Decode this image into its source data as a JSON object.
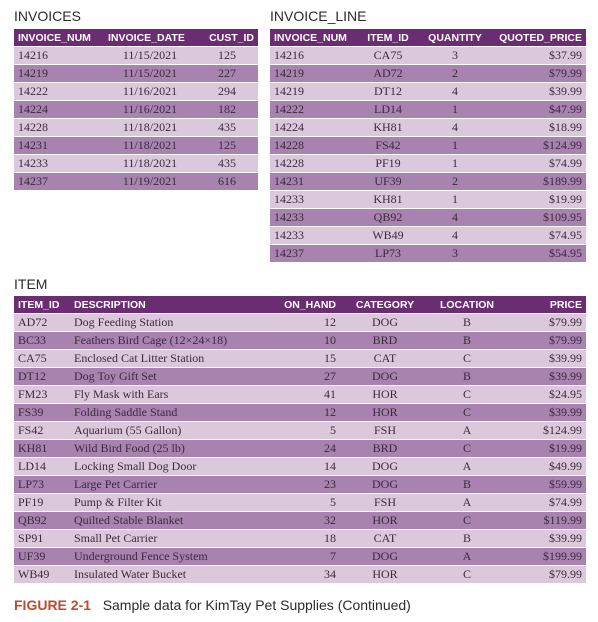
{
  "invoices": {
    "title": "INVOICES",
    "columns": [
      "INVOICE_NUM",
      "INVOICE_DATE",
      "CUST_ID"
    ],
    "rows": [
      [
        "14216",
        "11/15/2021",
        "125"
      ],
      [
        "14219",
        "11/15/2021",
        "227"
      ],
      [
        "14222",
        "11/16/2021",
        "294"
      ],
      [
        "14224",
        "11/16/2021",
        "182"
      ],
      [
        "14228",
        "11/18/2021",
        "435"
      ],
      [
        "14231",
        "11/18/2021",
        "125"
      ],
      [
        "14233",
        "11/18/2021",
        "435"
      ],
      [
        "14237",
        "11/19/2021",
        "616"
      ]
    ]
  },
  "invoice_line": {
    "title": "INVOICE_LINE",
    "columns": [
      "INVOICE_NUM",
      "ITEM_ID",
      "QUANTITY",
      "QUOTED_PRICE"
    ],
    "rows": [
      [
        "14216",
        "CA75",
        "3",
        "$37.99"
      ],
      [
        "14219",
        "AD72",
        "2",
        "$79.99"
      ],
      [
        "14219",
        "DT12",
        "4",
        "$39.99"
      ],
      [
        "14222",
        "LD14",
        "1",
        "$47.99"
      ],
      [
        "14224",
        "KH81",
        "4",
        "$18.99"
      ],
      [
        "14228",
        "FS42",
        "1",
        "$124.99"
      ],
      [
        "14228",
        "PF19",
        "1",
        "$74.99"
      ],
      [
        "14231",
        "UF39",
        "2",
        "$189.99"
      ],
      [
        "14233",
        "KH81",
        "1",
        "$19.99"
      ],
      [
        "14233",
        "QB92",
        "4",
        "$109.95"
      ],
      [
        "14233",
        "WB49",
        "4",
        "$74.95"
      ],
      [
        "14237",
        "LP73",
        "3",
        "$54.95"
      ]
    ]
  },
  "item": {
    "title": "ITEM",
    "columns": [
      "ITEM_ID",
      "DESCRIPTION",
      "ON_HAND",
      "CATEGORY",
      "LOCATION",
      "PRICE"
    ],
    "rows": [
      [
        "AD72",
        "Dog Feeding Station",
        "12",
        "DOG",
        "B",
        "$79.99"
      ],
      [
        "BC33",
        "Feathers Bird Cage (12×24×18)",
        "10",
        "BRD",
        "B",
        "$79.99"
      ],
      [
        "CA75",
        "Enclosed Cat Litter Station",
        "15",
        "CAT",
        "C",
        "$39.99"
      ],
      [
        "DT12",
        "Dog Toy Gift Set",
        "27",
        "DOG",
        "B",
        "$39.99"
      ],
      [
        "FM23",
        "Fly Mask with Ears",
        "41",
        "HOR",
        "C",
        "$24.95"
      ],
      [
        "FS39",
        "Folding Saddle Stand",
        "12",
        "HOR",
        "C",
        "$39.99"
      ],
      [
        "FS42",
        "Aquarium (55 Gallon)",
        "5",
        "FSH",
        "A",
        "$124.99"
      ],
      [
        "KH81",
        "Wild Bird Food (25 lb)",
        "24",
        "BRD",
        "C",
        "$19.99"
      ],
      [
        "LD14",
        "Locking Small Dog Door",
        "14",
        "DOG",
        "A",
        "$49.99"
      ],
      [
        "LP73",
        "Large Pet Carrier",
        "23",
        "DOG",
        "B",
        "$59.99"
      ],
      [
        "PF19",
        "Pump & Filter Kit",
        "5",
        "FSH",
        "A",
        "$74.99"
      ],
      [
        "QB92",
        "Quilted Stable Blanket",
        "32",
        "HOR",
        "C",
        "$119.99"
      ],
      [
        "SP91",
        "Small Pet Carrier",
        "18",
        "CAT",
        "B",
        "$39.99"
      ],
      [
        "UF39",
        "Underground Fence System",
        "7",
        "DOG",
        "A",
        "$199.99"
      ],
      [
        "WB49",
        "Insulated Water Bucket",
        "34",
        "HOR",
        "C",
        "$79.99"
      ]
    ]
  },
  "caption": {
    "figure_label": "FIGURE 2-1",
    "text": "Sample data for KimTay Pet Supplies (Continued)"
  },
  "colors": {
    "header": "#6b2d72",
    "row_light": "#dcc8dc",
    "row_dark": "#a883b0",
    "caption_accent": "#c24a2c"
  }
}
